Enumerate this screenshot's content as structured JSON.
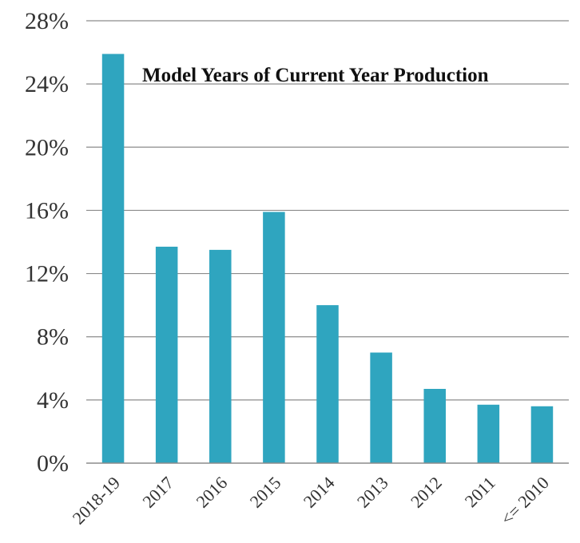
{
  "chart_data": {
    "type": "bar",
    "title": "Model Years of Current Year Production",
    "xlabel": "",
    "ylabel": "",
    "categories": [
      "2018-19",
      "2017",
      "2016",
      "2015",
      "2014",
      "2013",
      "2012",
      "2011",
      "<= 2010"
    ],
    "values": [
      25.9,
      13.7,
      13.5,
      15.9,
      10.0,
      7.0,
      4.7,
      3.7,
      3.6
    ],
    "ylim": [
      0,
      28
    ],
    "yticks": [
      0,
      4,
      8,
      12,
      16,
      20,
      24,
      28
    ],
    "ytick_labels": [
      "0%",
      "4%",
      "8%",
      "12%",
      "16%",
      "20%",
      "24%",
      "28%"
    ],
    "value_suffix": "%",
    "grid": true,
    "legend": "none",
    "colors": {
      "bar": "#2FA5BF",
      "grid": "#8c8c8c",
      "axis": "#8c8c8c",
      "text": "#333333"
    }
  }
}
